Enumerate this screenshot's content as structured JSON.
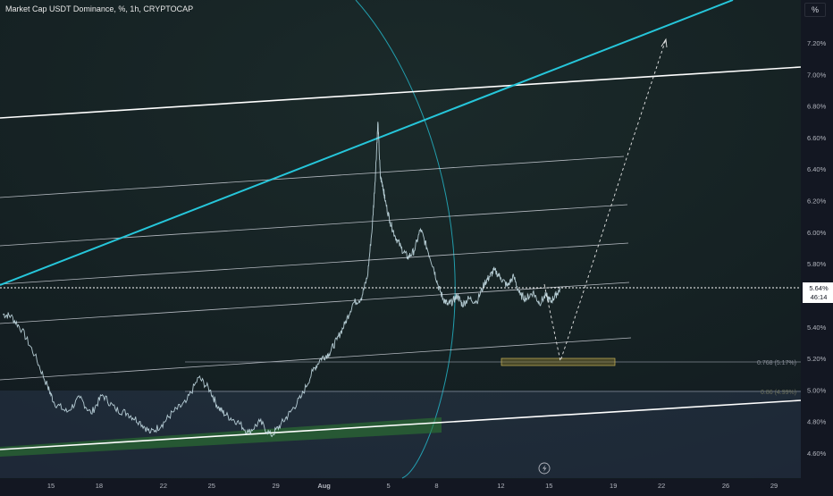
{
  "header": {
    "title": "Market Cap USDT Dominance, %, 1h, CRYPTOCAP",
    "unit_button": "%"
  },
  "price_tag": {
    "value": "5.64%",
    "countdown": "46:14"
  },
  "chart_data": {
    "type": "line",
    "title": "Market Cap USDT Dominance, %, 1h, CRYPTOCAP",
    "xlabel": "",
    "ylabel": "%",
    "x_tick_labels": [
      "15",
      "18",
      "22",
      "25",
      "29",
      "Aug",
      "5",
      "8",
      "12",
      "15",
      "19",
      "22",
      "26",
      "29"
    ],
    "x_tick_days": [
      15,
      18,
      22,
      25,
      29,
      32,
      36,
      39,
      43,
      46,
      50,
      53,
      57,
      60
    ],
    "y_tick_labels": [
      "7.20%",
      "7.00%",
      "6.80%",
      "6.60%",
      "6.40%",
      "6.20%",
      "6.00%",
      "5.80%",
      "5.60%",
      "5.40%",
      "5.20%",
      "5.00%",
      "4.80%",
      "4.60%"
    ],
    "y_ticks": [
      7.2,
      7.0,
      6.8,
      6.6,
      6.4,
      6.2,
      6.0,
      5.8,
      5.6,
      5.4,
      5.2,
      5.0,
      4.8,
      4.6
    ],
    "ylim": [
      4.54,
      7.42
    ],
    "xlim": [
      12.0,
      62.0
    ],
    "grid": false,
    "series": [
      {
        "values_x": [
          12.0,
          12.5,
          13.2,
          14.0,
          14.8,
          15.2,
          16.0,
          16.8,
          17.5,
          18.2,
          19.0,
          19.8,
          20.5,
          21.2,
          21.9,
          22.6,
          23.4,
          24.2,
          24.9,
          25.4,
          25.9,
          26.6,
          27.3,
          28.0,
          28.7,
          29.3,
          29.9,
          30.6,
          31.3,
          31.8,
          32.3,
          32.8,
          33.3,
          33.8,
          34.3,
          34.7,
          35.0,
          35.2,
          35.35,
          35.5,
          35.65,
          35.8,
          36.1,
          36.4,
          36.8,
          37.2,
          37.6,
          38.0,
          38.4,
          38.8,
          39.1,
          39.4,
          39.7,
          40.0,
          40.3,
          40.6,
          41.0,
          41.5,
          42.0,
          42.3,
          42.6,
          43.0,
          43.4,
          43.8,
          44.2,
          44.6,
          45.0,
          45.4,
          45.8,
          46.1,
          46.4,
          46.7
        ],
        "values_y": [
          5.48,
          5.47,
          5.38,
          5.22,
          5.02,
          4.92,
          4.86,
          4.95,
          4.85,
          4.97,
          4.88,
          4.85,
          4.8,
          4.73,
          4.78,
          4.86,
          4.92,
          5.08,
          5.0,
          4.89,
          4.84,
          4.8,
          4.73,
          4.8,
          4.71,
          4.78,
          4.86,
          4.96,
          5.12,
          5.2,
          5.23,
          5.32,
          5.42,
          5.55,
          5.58,
          5.72,
          6.04,
          6.38,
          6.7,
          6.35,
          6.3,
          6.2,
          6.07,
          5.98,
          5.9,
          5.84,
          5.88,
          6.02,
          5.9,
          5.78,
          5.66,
          5.58,
          5.54,
          5.56,
          5.6,
          5.54,
          5.58,
          5.56,
          5.68,
          5.72,
          5.76,
          5.71,
          5.66,
          5.72,
          5.6,
          5.58,
          5.62,
          5.55,
          5.6,
          5.56,
          5.6,
          5.64
        ]
      }
    ],
    "annotations": [
      {
        "text": "0.768 (5.17%)",
        "y": 5.17
      },
      {
        "text": "0.86 (4.99%)",
        "y": 4.99
      }
    ]
  },
  "colors": {
    "price_line": "#cfe8f0",
    "channel_teal": "#26c6da",
    "white_line": "#ffffff",
    "support_zone": "#2e7d32",
    "axis_text": "#b2b5be"
  },
  "icons": {
    "replay": "lightning-icon"
  }
}
